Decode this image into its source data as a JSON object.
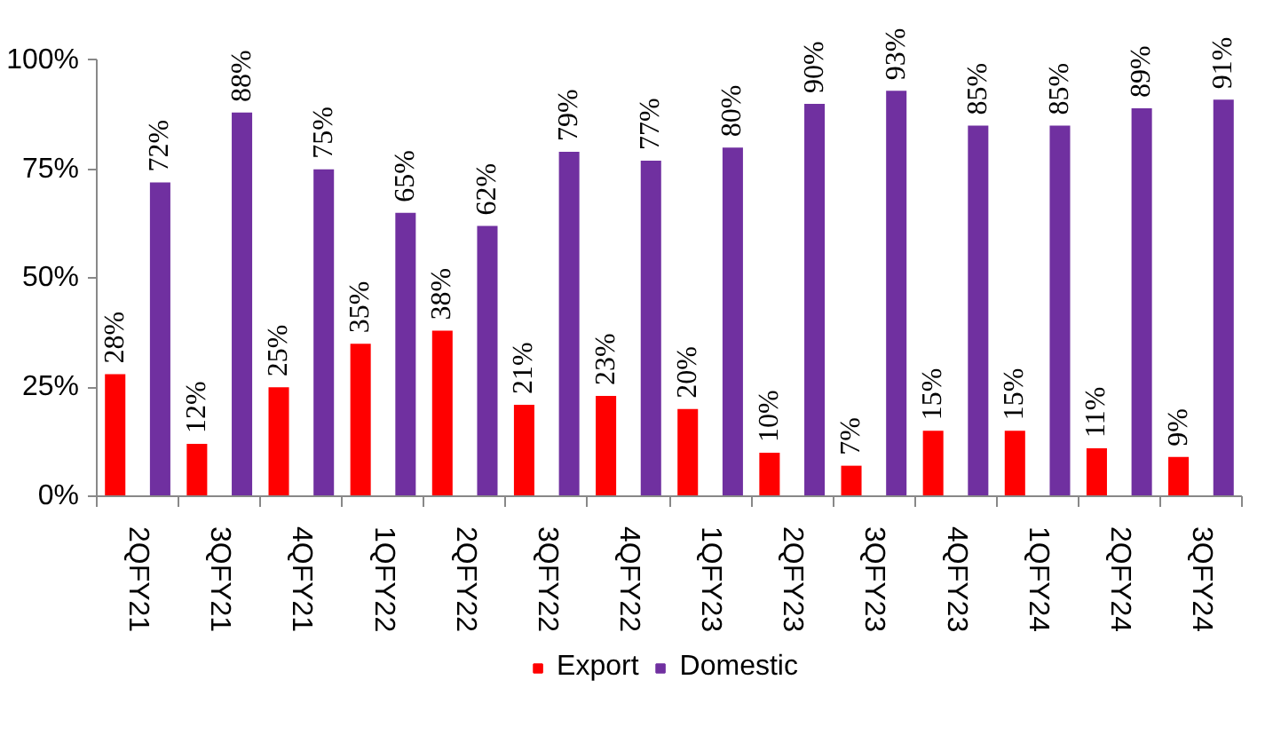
{
  "chart_data": {
    "type": "bar",
    "categories": [
      "2QFY21",
      "3QFY21",
      "4QFY21",
      "1QFY22",
      "2QFY22",
      "3QFY22",
      "4QFY22",
      "1QFY23",
      "2QFY23",
      "3QFY23",
      "4QFY23",
      "1QFY24",
      "2QFY24",
      "3QFY24"
    ],
    "series": [
      {
        "name": "Export",
        "color": "#ff0000",
        "values": [
          28,
          12,
          25,
          35,
          38,
          21,
          23,
          20,
          10,
          7,
          15,
          15,
          11,
          9
        ],
        "value_labels": [
          "28%",
          "12%",
          "25%",
          "35%",
          "38%",
          "21%",
          "23%",
          "20%",
          "10%",
          "7%",
          "15%",
          "15%",
          "11%",
          "9%"
        ]
      },
      {
        "name": "Domestic",
        "color": "#7030a0",
        "values": [
          72,
          88,
          75,
          65,
          62,
          79,
          77,
          80,
          90,
          93,
          85,
          85,
          89,
          91
        ],
        "value_labels": [
          "72%",
          "88%",
          "75%",
          "65%",
          "62%",
          "79%",
          "77%",
          "80%",
          "90%",
          "93%",
          "85%",
          "85%",
          "89%",
          "91%"
        ]
      }
    ],
    "ylim": [
      0,
      100
    ],
    "yticks": [
      {
        "value": 0,
        "label": "0%"
      },
      {
        "value": 25,
        "label": "25%"
      },
      {
        "value": 50,
        "label": "50%"
      },
      {
        "value": 75,
        "label": "75%"
      },
      {
        "value": 100,
        "label": "100%"
      }
    ],
    "grid": false,
    "legend": "bottom"
  }
}
